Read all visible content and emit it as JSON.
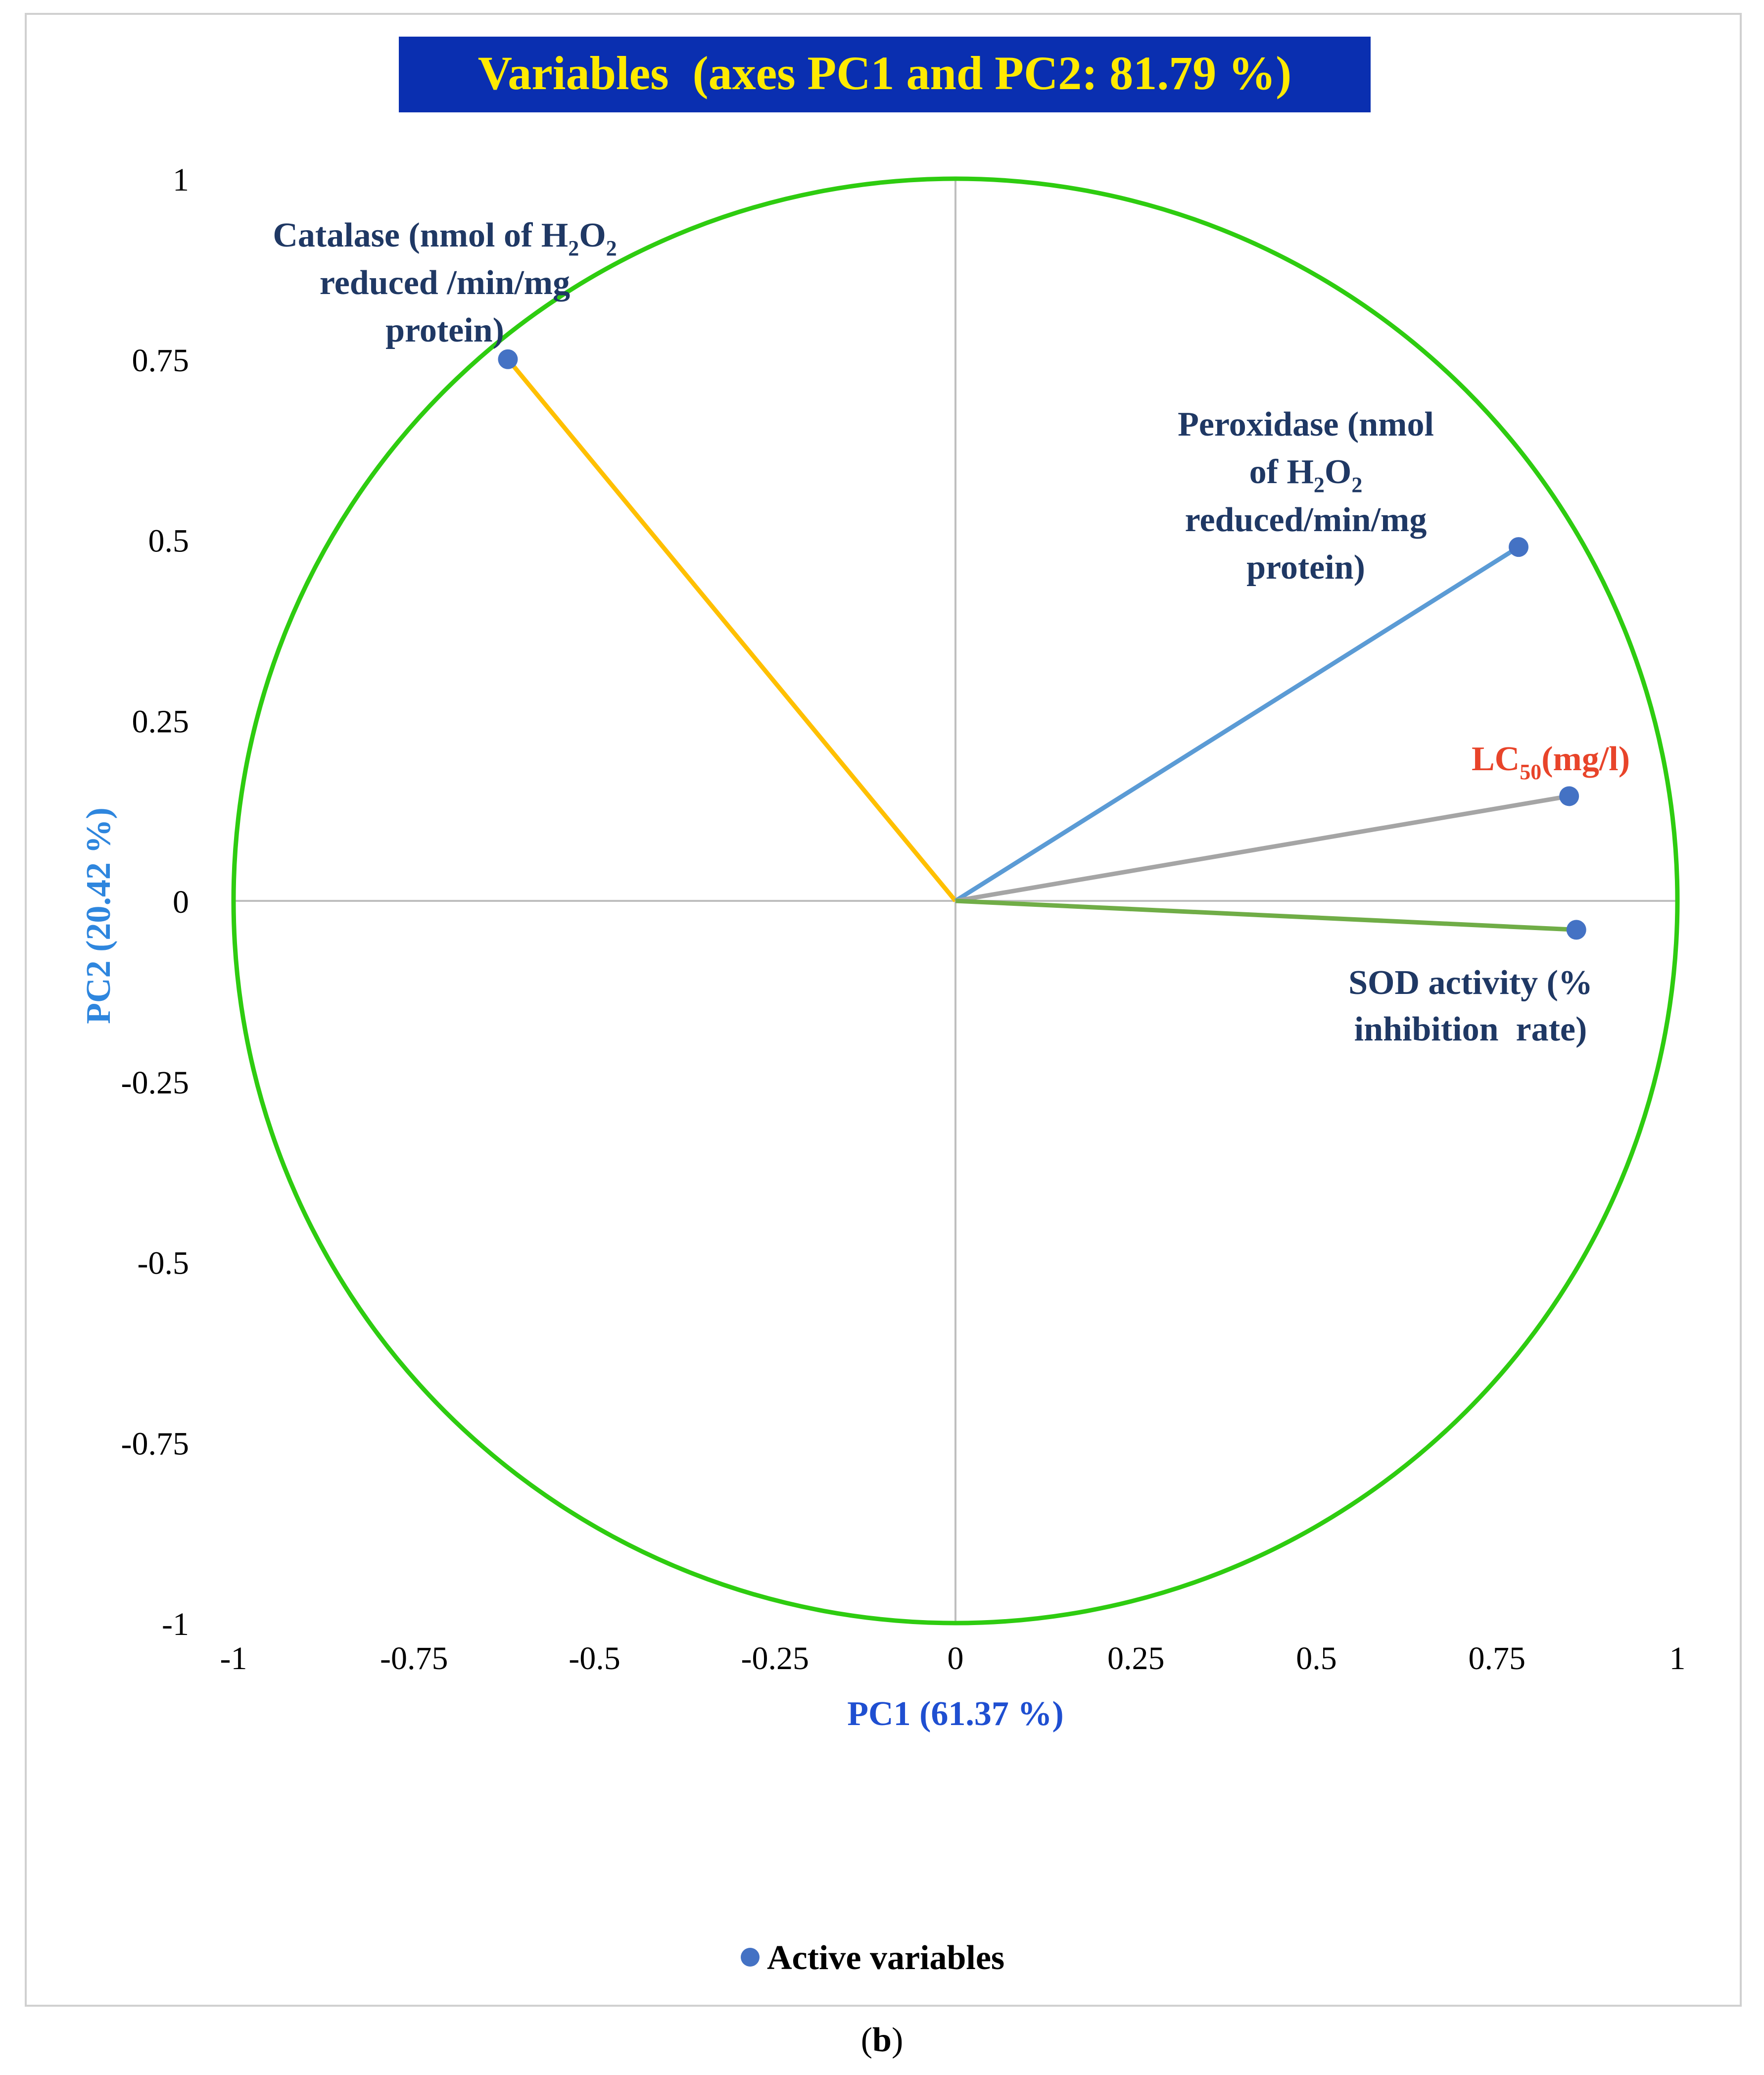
{
  "chart_data": {
    "type": "scatter",
    "subtype": "pca-correlation-circle",
    "title": "Variables  (axes PC1 and PC2: 81.79 %)",
    "xlabel": "PC1 (61.37 %)",
    "ylabel": "PC2 (20.42 %)",
    "xlim": [
      -1,
      1
    ],
    "ylim": [
      -1,
      1
    ],
    "x_ticks": [
      "-1",
      "-0.75",
      "-0.5",
      "-0.25",
      "0",
      "0.25",
      "0.5",
      "0.75",
      "1"
    ],
    "y_ticks": [
      "1",
      "0.75",
      "0.5",
      "0.25",
      "0",
      "-0.25",
      "-0.5",
      "-0.75",
      "-1"
    ],
    "legend": {
      "label": "Active variables",
      "position": "bottom"
    },
    "series": [
      {
        "name": "Catalase",
        "label_lines": [
          "Catalase (nmol of H",
          "2",
          "O",
          "2",
          "reduced /min/mg",
          "protein)"
        ],
        "x": -0.62,
        "y": 0.75,
        "color": "#FFC000",
        "label_color": "#1F3864"
      },
      {
        "name": "Peroxidase",
        "label_lines": [
          "Peroxidase (nmol",
          "of H",
          "2",
          "O",
          "2",
          "reduced/min/mg",
          "protein)"
        ],
        "x": 0.78,
        "y": 0.49,
        "color": "#5B9BD5",
        "label_color": "#1F3864"
      },
      {
        "name": "LC50",
        "label_lines": [
          "LC",
          "50",
          "(mg/l)"
        ],
        "x": 0.85,
        "y": 0.145,
        "color": "#A5A5A5",
        "label_color": "#E8442A"
      },
      {
        "name": "SOD activity",
        "label_lines": [
          "SOD activity (%",
          "inhibition  rate)"
        ],
        "x": 0.86,
        "y": -0.04,
        "color": "#70AD47",
        "label_color": "#1F3864"
      }
    ],
    "point_color": "#4472C4",
    "circle_color": "#2ECC10",
    "title_bg": "#0A2FB0",
    "title_color": "#FFEA00",
    "xlabel_color": "#1F4FD1",
    "ylabel_color": "#2E86DE"
  },
  "caption": {
    "open": "(",
    "letter": "b",
    "close": ")"
  }
}
